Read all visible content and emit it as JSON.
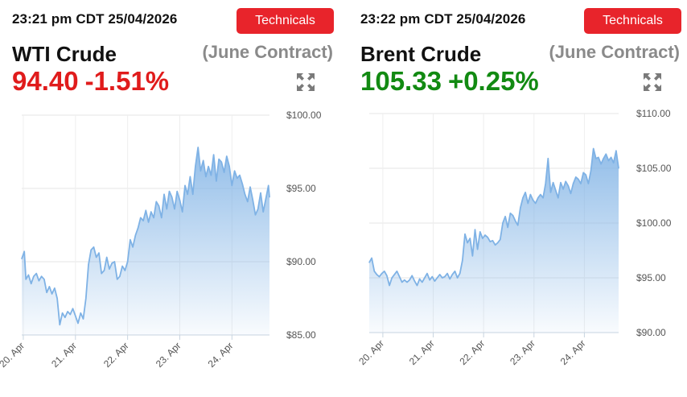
{
  "colors": {
    "up": "#128a12",
    "down": "#e01c1c",
    "button": "#e8242b",
    "line": "#7fb2e5"
  },
  "panels": [
    {
      "timestamp": "23:21 pm CDT 25/04/2026",
      "button_label": "Technicals",
      "instrument": "WTI Crude",
      "contract": "(June Contract)",
      "price": "94.40",
      "change": "-1.51%",
      "direction": "down",
      "expand_icon": "expand-arrows-icon"
    },
    {
      "timestamp": "23:22 pm CDT 25/04/2026",
      "button_label": "Technicals",
      "instrument": "Brent Crude",
      "contract": "(June Contract)",
      "price": "105.33",
      "change": "+0.25%",
      "direction": "up",
      "expand_icon": "expand-arrows-icon"
    }
  ],
  "chart_data": [
    {
      "type": "area",
      "xlabel": "",
      "ylabel": "",
      "x_tick_labels": [
        "20. Apr",
        "21. Apr",
        "22. Apr",
        "23. Apr",
        "24. Apr"
      ],
      "y_tick_labels": [
        "$85.00",
        "$90.00",
        "$95.00",
        "$100.00"
      ],
      "y_ticks": [
        85,
        90,
        95,
        100
      ],
      "ylim": [
        85,
        100
      ],
      "xlim": [
        19.97,
        24.72
      ],
      "grid": true,
      "x": [
        19.97,
        20.02,
        20.05,
        20.1,
        20.15,
        20.2,
        20.25,
        20.3,
        20.35,
        20.4,
        20.45,
        20.5,
        20.55,
        20.6,
        20.65,
        20.7,
        20.75,
        20.8,
        20.85,
        20.9,
        20.95,
        21.0,
        21.05,
        21.1,
        21.15,
        21.2,
        21.25,
        21.3,
        21.35,
        21.4,
        21.45,
        21.5,
        21.55,
        21.6,
        21.65,
        21.7,
        21.75,
        21.8,
        21.85,
        21.9,
        21.95,
        22.0,
        22.05,
        22.1,
        22.15,
        22.2,
        22.25,
        22.3,
        22.35,
        22.4,
        22.45,
        22.5,
        22.55,
        22.6,
        22.65,
        22.7,
        22.75,
        22.8,
        22.85,
        22.9,
        22.95,
        23.0,
        23.05,
        23.1,
        23.15,
        23.2,
        23.25,
        23.3,
        23.35,
        23.4,
        23.45,
        23.5,
        23.55,
        23.6,
        23.65,
        23.7,
        23.75,
        23.8,
        23.85,
        23.9,
        23.95,
        24.0,
        24.05,
        24.1,
        24.15,
        24.2,
        24.25,
        24.3,
        24.35,
        24.4,
        24.45,
        24.5,
        24.55,
        24.6,
        24.65,
        24.7,
        24.72
      ],
      "y": [
        90.2,
        90.7,
        88.8,
        89.1,
        88.5,
        89.0,
        89.2,
        88.7,
        89.0,
        88.8,
        87.9,
        88.3,
        87.8,
        88.2,
        87.5,
        85.7,
        86.5,
        86.2,
        86.6,
        86.4,
        86.8,
        86.3,
        85.8,
        86.5,
        86.1,
        87.5,
        89.8,
        90.8,
        91.0,
        90.3,
        90.6,
        89.2,
        89.4,
        90.3,
        89.5,
        89.9,
        90.0,
        88.8,
        89.0,
        89.7,
        89.4,
        90.0,
        91.5,
        91.0,
        91.8,
        92.3,
        93.0,
        92.8,
        93.5,
        92.7,
        93.4,
        93.0,
        94.1,
        93.8,
        93.0,
        94.6,
        93.6,
        94.8,
        94.4,
        93.6,
        94.8,
        94.2,
        93.4,
        95.2,
        94.6,
        95.8,
        94.6,
        96.5,
        97.8,
        96.2,
        96.9,
        95.8,
        96.5,
        95.9,
        97.3,
        95.5,
        97.0,
        96.8,
        96.1,
        97.2,
        96.5,
        95.2,
        96.2,
        95.7,
        95.9,
        95.3,
        94.6,
        94.1,
        95.1,
        94.2,
        93.2,
        93.6,
        94.7,
        93.4,
        94.3,
        95.2,
        94.4
      ]
    },
    {
      "type": "area",
      "xlabel": "",
      "ylabel": "",
      "x_tick_labels": [
        "20. Apr",
        "21. Apr",
        "22. Apr",
        "23. Apr",
        "24. Apr"
      ],
      "y_tick_labels": [
        "$90.00",
        "$95.00",
        "$100.00",
        "$105.00",
        "$110.00"
      ],
      "y_ticks": [
        90,
        95,
        100,
        105,
        110
      ],
      "ylim": [
        90,
        110
      ],
      "xlim": [
        19.73,
        24.68
      ],
      "grid": true,
      "x": [
        19.73,
        19.78,
        19.83,
        19.88,
        19.93,
        19.98,
        20.03,
        20.08,
        20.13,
        20.18,
        20.23,
        20.28,
        20.33,
        20.38,
        20.43,
        20.48,
        20.53,
        20.58,
        20.63,
        20.68,
        20.73,
        20.78,
        20.83,
        20.88,
        20.93,
        20.98,
        21.03,
        21.08,
        21.13,
        21.18,
        21.23,
        21.28,
        21.33,
        21.38,
        21.43,
        21.48,
        21.53,
        21.58,
        21.63,
        21.68,
        21.73,
        21.78,
        21.83,
        21.88,
        21.93,
        21.98,
        22.03,
        22.08,
        22.13,
        22.18,
        22.23,
        22.28,
        22.33,
        22.38,
        22.43,
        22.48,
        22.53,
        22.58,
        22.63,
        22.68,
        22.73,
        22.78,
        22.83,
        22.88,
        22.93,
        22.98,
        23.03,
        23.08,
        23.13,
        23.18,
        23.23,
        23.28,
        23.33,
        23.38,
        23.43,
        23.48,
        23.53,
        23.58,
        23.63,
        23.68,
        23.73,
        23.78,
        23.83,
        23.88,
        23.93,
        23.98,
        24.03,
        24.08,
        24.13,
        24.18,
        24.23,
        24.28,
        24.33,
        24.38,
        24.43,
        24.48,
        24.53,
        24.58,
        24.63,
        24.68
      ],
      "y": [
        96.4,
        96.8,
        95.6,
        95.3,
        95.1,
        95.4,
        95.6,
        95.2,
        94.3,
        95.0,
        95.3,
        95.6,
        95.1,
        94.6,
        94.8,
        94.6,
        94.8,
        95.2,
        94.7,
        94.3,
        94.9,
        94.6,
        95.0,
        95.4,
        94.8,
        95.1,
        94.7,
        95.0,
        95.3,
        95.0,
        95.1,
        95.4,
        94.9,
        95.3,
        95.6,
        95.0,
        95.4,
        96.6,
        99.0,
        98.2,
        98.6,
        97.0,
        99.4,
        97.6,
        99.2,
        98.6,
        98.9,
        98.7,
        98.3,
        98.4,
        98.0,
        98.2,
        98.5,
        100.0,
        100.6,
        99.6,
        100.9,
        100.7,
        100.2,
        99.8,
        101.4,
        102.3,
        102.8,
        101.8,
        102.6,
        102.1,
        101.8,
        102.3,
        102.6,
        102.3,
        103.6,
        105.9,
        102.8,
        103.7,
        103.0,
        102.3,
        103.7,
        103.1,
        103.8,
        103.4,
        102.7,
        103.6,
        104.2,
        104.0,
        103.6,
        104.6,
        104.4,
        103.6,
        104.8,
        106.8,
        105.9,
        106.0,
        105.4,
        105.9,
        106.3,
        105.7,
        106.0,
        105.5,
        106.6,
        105.0
      ]
    }
  ]
}
